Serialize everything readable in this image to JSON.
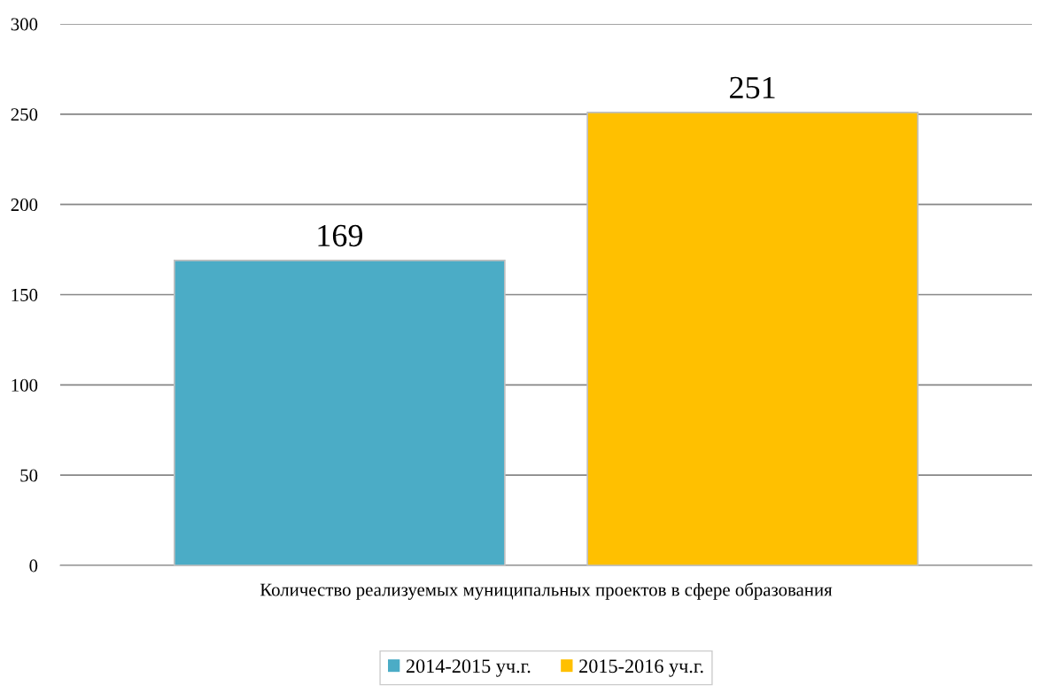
{
  "chart_data": {
    "type": "bar",
    "categories": [
      "Количество реализуемых муниципальных проектов в сфере образования"
    ],
    "series": [
      {
        "name": "2014-2015 уч.г.",
        "color": "#4bacc6",
        "values": [
          169
        ]
      },
      {
        "name": "2015-2016 уч.г.",
        "color": "#ffc000",
        "values": [
          251
        ]
      }
    ],
    "ylim": [
      0,
      300
    ],
    "yticks": [
      0,
      50,
      100,
      150,
      200,
      250,
      300
    ],
    "grid": "y",
    "legend": "bottom",
    "data_labels": true
  }
}
